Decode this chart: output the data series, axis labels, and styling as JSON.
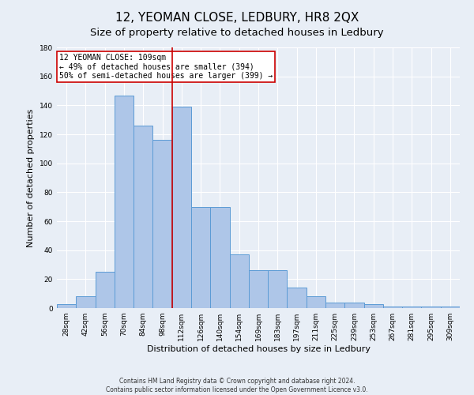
{
  "title": "12, YEOMAN CLOSE, LEDBURY, HR8 2QX",
  "subtitle": "Size of property relative to detached houses in Ledbury",
  "xlabel": "Distribution of detached houses by size in Ledbury",
  "ylabel": "Number of detached properties",
  "footer_line1": "Contains HM Land Registry data © Crown copyright and database right 2024.",
  "footer_line2": "Contains public sector information licensed under the Open Government Licence v3.0.",
  "categories": [
    "28sqm",
    "42sqm",
    "56sqm",
    "70sqm",
    "84sqm",
    "98sqm",
    "112sqm",
    "126sqm",
    "140sqm",
    "154sqm",
    "169sqm",
    "183sqm",
    "197sqm",
    "211sqm",
    "225sqm",
    "239sqm",
    "253sqm",
    "267sqm",
    "281sqm",
    "295sqm",
    "309sqm"
  ],
  "values": [
    3,
    8,
    25,
    147,
    126,
    116,
    139,
    70,
    70,
    37,
    26,
    26,
    14,
    8,
    4,
    4,
    3,
    1,
    1,
    1,
    1
  ],
  "bar_color": "#aec6e8",
  "bar_edgecolor": "#5b9bd5",
  "vline_x_index": 6,
  "vline_color": "#cc0000",
  "annotation_text_line1": "12 YEOMAN CLOSE: 109sqm",
  "annotation_text_line2": "← 49% of detached houses are smaller (394)",
  "annotation_text_line3": "50% of semi-detached houses are larger (399) →",
  "annotation_box_edgecolor": "#cc0000",
  "annotation_box_facecolor": "#ffffff",
  "ylim": [
    0,
    180
  ],
  "yticks": [
    0,
    20,
    40,
    60,
    80,
    100,
    120,
    140,
    160,
    180
  ],
  "background_color": "#e8eef6",
  "plot_background": "#e8eef6",
  "grid_color": "#ffffff",
  "title_fontsize": 11,
  "subtitle_fontsize": 9.5,
  "tick_fontsize": 6.5,
  "ylabel_fontsize": 8,
  "xlabel_fontsize": 8,
  "annotation_fontsize": 7,
  "footer_fontsize": 5.5
}
